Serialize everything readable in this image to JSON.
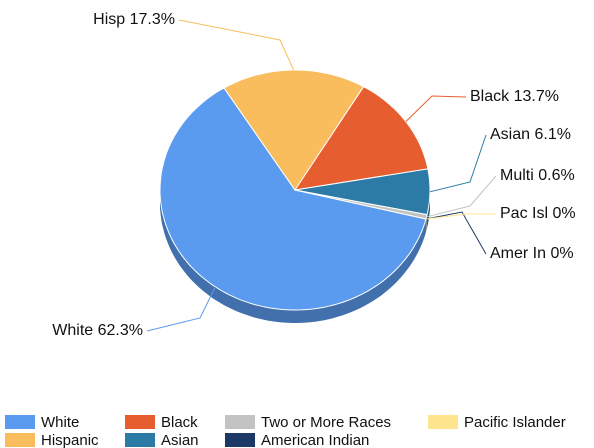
{
  "chart_data": {
    "type": "pie",
    "categories": [
      "White",
      "Hispanic",
      "Black",
      "Asian",
      "Two or More Races",
      "American Indian",
      "Pacific Islander"
    ],
    "values": [
      62.3,
      17.3,
      13.7,
      6.1,
      0.6,
      0,
      0
    ],
    "value_labels": [
      "White 62.3%",
      "Hisp 17.3%",
      "Black 13.7%",
      "Asian 6.1%",
      "Multi 0.6%",
      "Amer In 0%",
      "Pac Isl 0%"
    ],
    "colors": [
      "#5b9bef",
      "#f9bd5e",
      "#e65e30",
      "#2b7ba6",
      "#c3c3c3",
      "#1d3967",
      "#fde48d"
    ]
  }
}
